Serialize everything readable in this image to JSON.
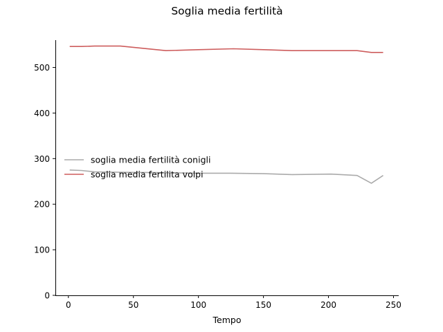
{
  "chart_data": {
    "type": "line",
    "title": "Soglia media fertilità",
    "xlabel": "Tempo",
    "ylabel": "",
    "xlim": [
      -10,
      254
    ],
    "ylim": [
      0,
      560
    ],
    "xticks": [
      0,
      50,
      100,
      150,
      200,
      250
    ],
    "yticks": [
      0,
      100,
      200,
      300,
      400,
      500
    ],
    "grid": false,
    "legend_position": "center-left",
    "series": [
      {
        "name": "soglia media fertilità conigli",
        "color": "#aaaaaa",
        "x": [
          1,
          10,
          20,
          40,
          75,
          100,
          125,
          150,
          172,
          202,
          222,
          233,
          242
        ],
        "y": [
          275,
          274,
          271,
          270,
          269,
          268,
          268,
          267,
          265,
          266,
          263,
          246,
          263
        ]
      },
      {
        "name": "soglia media fertilita volpi",
        "color": "#cd5c5c",
        "x": [
          1,
          10,
          20,
          40,
          75,
          100,
          127,
          150,
          172,
          200,
          222,
          233,
          242
        ],
        "y": [
          546,
          546,
          547,
          547,
          537,
          539,
          541,
          539,
          537,
          537,
          537,
          533,
          533
        ]
      }
    ]
  }
}
